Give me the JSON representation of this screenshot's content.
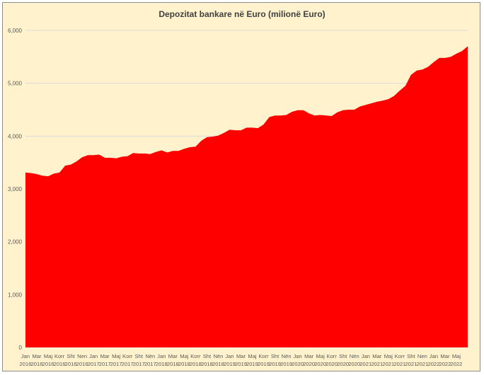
{
  "chart_data": {
    "type": "area",
    "title": "Depozitat bankare në Euro (milionë Euro)",
    "xlabel": "",
    "ylabel": "",
    "ylim": [
      0,
      6000
    ],
    "yticks": [
      "0",
      "1,000",
      "2,000",
      "3,000",
      "4,000",
      "5,000",
      "6,000"
    ],
    "grid": true,
    "legend": "none",
    "color": "#ff0000",
    "x_label_months": [
      "Jan",
      "Mar",
      "Maj",
      "Korr",
      "Sht",
      "Nen",
      "Jan",
      "Mar",
      "Maj",
      "Korr",
      "Sht",
      "Nën",
      "Jan",
      "Mar",
      "Maj",
      "Korr",
      "Sht",
      "Nën",
      "Jan",
      "Mar",
      "Maj",
      "Korr",
      "Sht",
      "Nën",
      "Jan",
      "Mar",
      "Maj",
      "Korr",
      "Sht",
      "Nën",
      "Jan",
      "Mar",
      "Maj",
      "Korr",
      "Sht",
      "Nen",
      "Jan",
      "Mar",
      "Maj"
    ],
    "x_label_years": [
      "2016",
      "2016",
      "2016",
      "2016",
      "2016",
      "2016",
      "2017",
      "2017",
      "2017",
      "2017",
      "2017",
      "2017",
      "2018",
      "2018",
      "2018",
      "2018",
      "2018",
      "2018",
      "2019",
      "2019",
      "2019",
      "2019",
      "2019",
      "2019",
      "2020",
      "2020",
      "2020",
      "2020",
      "2020",
      "2020",
      "2021",
      "2021",
      "2021",
      "2021",
      "2021",
      "2021",
      "2022",
      "2022",
      "2022"
    ],
    "values": [
      3310,
      3300,
      3280,
      3250,
      3240,
      3290,
      3310,
      3440,
      3460,
      3520,
      3600,
      3640,
      3640,
      3650,
      3590,
      3590,
      3580,
      3610,
      3620,
      3680,
      3670,
      3670,
      3660,
      3700,
      3730,
      3690,
      3720,
      3720,
      3760,
      3790,
      3800,
      3910,
      3980,
      3990,
      4010,
      4060,
      4120,
      4110,
      4110,
      4160,
      4160,
      4150,
      4220,
      4360,
      4390,
      4390,
      4400,
      4460,
      4490,
      4490,
      4430,
      4390,
      4400,
      4390,
      4380,
      4450,
      4490,
      4500,
      4500,
      4560,
      4590,
      4620,
      4650,
      4670,
      4700,
      4760,
      4860,
      4950,
      5160,
      5240,
      5260,
      5310,
      5400,
      5480,
      5480,
      5500,
      5560,
      5610,
      5700
    ]
  }
}
